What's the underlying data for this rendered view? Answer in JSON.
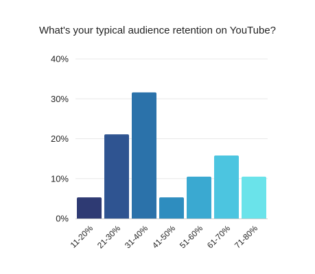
{
  "chart_data": {
    "type": "bar",
    "title": "What's your typical audience retention on YouTube?",
    "categories": [
      "11-20%",
      "21-30%",
      "31-40%",
      "41-50%",
      "51-60%",
      "61-70%",
      "71-80%"
    ],
    "values": [
      5.3,
      21.1,
      31.6,
      5.3,
      10.5,
      15.8,
      10.5
    ],
    "ylim": [
      0,
      40
    ],
    "yticks": [
      0,
      10,
      20,
      30,
      40
    ],
    "ytick_labels": [
      "0%",
      "10%",
      "20%",
      "30%",
      "40%"
    ],
    "grid": true,
    "legend": "none",
    "colors": [
      "#2e3a73",
      "#2f5491",
      "#2b72aa",
      "#2e8dbf",
      "#3aa9d1",
      "#4cc5e0",
      "#6ae3ea"
    ]
  }
}
